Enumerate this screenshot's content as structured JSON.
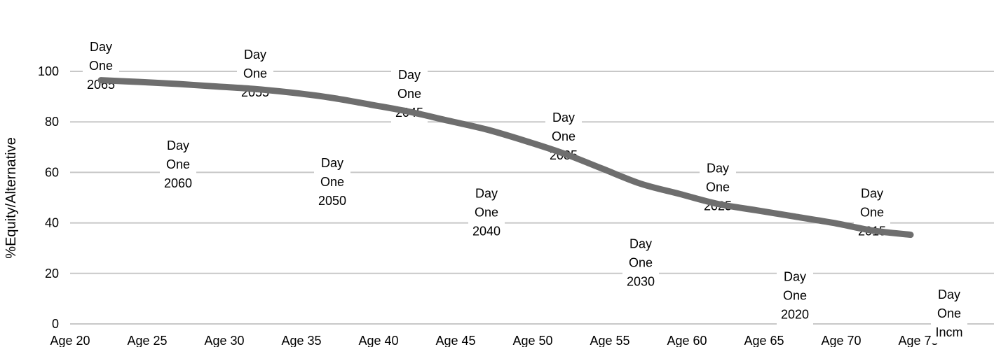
{
  "chart_data": {
    "type": "line",
    "ylabel": "%Equity/Alternative",
    "xlabel": "",
    "title": "",
    "ylim": [
      0,
      100
    ],
    "yticks": [
      0,
      20,
      40,
      60,
      80,
      100
    ],
    "grid": true,
    "categories": [
      "Age 20",
      "Age 25",
      "Age 30",
      "Age 35",
      "Age 40",
      "Age 45",
      "Age 50",
      "Age 55",
      "Age 60",
      "Age 65",
      "Age 70",
      "Age 75"
    ],
    "series": [
      {
        "x": [
          22,
          24.5,
          27,
          29.5,
          32,
          34.5,
          37,
          39.5,
          42,
          44.5,
          47,
          49.5,
          52,
          54.5,
          57,
          59.5,
          62,
          64.5,
          67,
          69.5,
          72,
          74.5
        ],
        "values": [
          96.5,
          95.8,
          95.0,
          94.0,
          93.0,
          91.5,
          89.5,
          86.8,
          84.0,
          80.5,
          77.0,
          72.5,
          67.5,
          61.5,
          55.5,
          51.5,
          47.5,
          45.0,
          42.5,
          40.0,
          37.0,
          35.3
        ],
        "color": "#6e6e6e"
      }
    ],
    "annotations": [
      {
        "lines": [
          "Day",
          "One",
          "2065"
        ],
        "x": 22,
        "y": 113
      },
      {
        "lines": [
          "Day",
          "One",
          "2060"
        ],
        "x": 27,
        "y": 74
      },
      {
        "lines": [
          "Day",
          "One",
          "2055"
        ],
        "x": 32,
        "y": 110
      },
      {
        "lines": [
          "Day",
          "One",
          "2050"
        ],
        "x": 37,
        "y": 67
      },
      {
        "lines": [
          "Day",
          "One",
          "2045"
        ],
        "x": 42,
        "y": 102
      },
      {
        "lines": [
          "Day",
          "One",
          "2040"
        ],
        "x": 47,
        "y": 55
      },
      {
        "lines": [
          "Day",
          "One",
          "2035"
        ],
        "x": 52,
        "y": 85
      },
      {
        "lines": [
          "Day",
          "One",
          "2030"
        ],
        "x": 57,
        "y": 35
      },
      {
        "lines": [
          "Day",
          "One",
          "2025"
        ],
        "x": 62,
        "y": 65
      },
      {
        "lines": [
          "Day",
          "One",
          "2020"
        ],
        "x": 67,
        "y": 22
      },
      {
        "lines": [
          "Day",
          "One",
          "2015"
        ],
        "x": 72,
        "y": 55
      },
      {
        "lines": [
          "Day",
          "One",
          "Incm"
        ],
        "x": 77,
        "y": 15
      }
    ]
  }
}
